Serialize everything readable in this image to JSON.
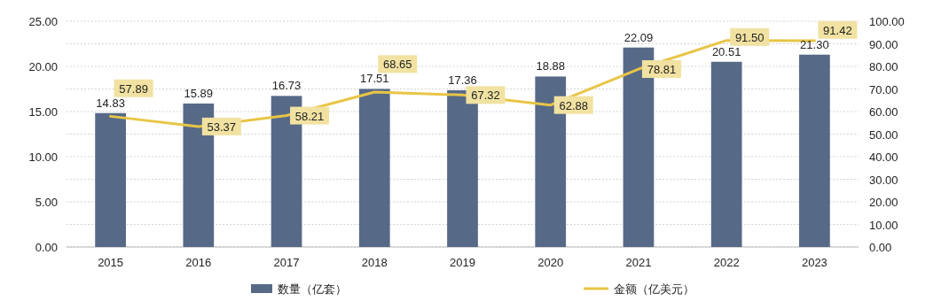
{
  "chart_data": {
    "type": "bar",
    "categories": [
      "2015",
      "2016",
      "2017",
      "2018",
      "2019",
      "2020",
      "2021",
      "2022",
      "2023"
    ],
    "series": [
      {
        "name": "数量（亿套）",
        "color": "#566a87",
        "values": [
          14.83,
          15.89,
          16.73,
          17.51,
          17.36,
          18.88,
          22.09,
          20.51,
          21.3
        ],
        "value_labels": [
          "14.83",
          "15.89",
          "16.73",
          "17.51",
          "17.36",
          "18.88",
          "22.09",
          "20.51",
          "21.30"
        ]
      },
      {
        "name": "金额（亿美元）",
        "type": "line",
        "axis": "y2",
        "color": "#e8c547",
        "values": [
          57.89,
          53.37,
          58.21,
          68.65,
          67.32,
          62.88,
          78.81,
          91.5,
          91.42
        ],
        "value_labels": [
          "57.89",
          "53.37",
          "58.21",
          "68.65",
          "67.32",
          "62.88",
          "78.81",
          "91.50",
          "91.42"
        ]
      }
    ],
    "ylim": [
      0,
      25
    ],
    "yticks": [
      {
        "value": 0,
        "label": "0.00"
      },
      {
        "value": 5,
        "label": "5.00"
      },
      {
        "value": 10,
        "label": "10.00"
      },
      {
        "value": 15,
        "label": "15.00"
      },
      {
        "value": 20,
        "label": "20.00"
      },
      {
        "value": 25,
        "label": "25.00"
      }
    ],
    "y2lim": [
      0,
      100
    ],
    "y2ticks": [
      {
        "value": 0,
        "label": "0.00"
      },
      {
        "value": 10,
        "label": "10.00"
      },
      {
        "value": 20,
        "label": "20.00"
      },
      {
        "value": 30,
        "label": "30.00"
      },
      {
        "value": 40,
        "label": "40.00"
      },
      {
        "value": 50,
        "label": "50.00"
      },
      {
        "value": 60,
        "label": "60.00"
      },
      {
        "value": 70,
        "label": "70.00"
      },
      {
        "value": 80,
        "label": "80.00"
      },
      {
        "value": 90,
        "label": "90.00"
      },
      {
        "value": 100,
        "label": "100.00"
      }
    ],
    "grid": "y",
    "legend": "bottom",
    "data_labels": true,
    "marker": "none"
  }
}
